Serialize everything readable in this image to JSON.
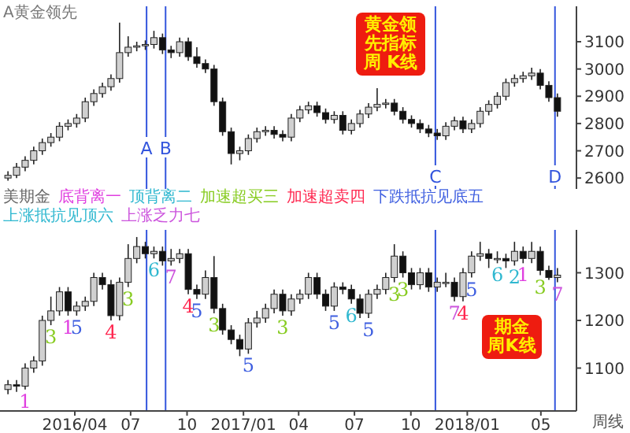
{
  "chart_data": [
    {
      "type": "candlestick",
      "title": "A黄金领先",
      "annotations": [
        "黄金领先指标周 K线"
      ],
      "x": [
        "2015-12-14",
        "2015-12-28",
        "2016-01-11",
        "2016-01-25",
        "2016-02-08",
        "2016-02-22",
        "2016-03-07",
        "2016-03-21",
        "2016-04-04",
        "2016-04-18",
        "2016-05-02",
        "2016-05-16",
        "2016-05-30",
        "2016-06-13",
        "2016-06-27",
        "2016-07-11",
        "2016-07-25",
        "2016-08-08",
        "2016-08-22",
        "2016-09-05",
        "2016-09-19",
        "2016-10-03",
        "2016-10-17",
        "2016-10-31",
        "2016-11-14",
        "2016-11-28",
        "2016-12-12",
        "2016-12-26",
        "2017-01-09",
        "2017-01-23",
        "2017-02-06",
        "2017-02-20",
        "2017-03-06",
        "2017-03-20",
        "2017-04-03",
        "2017-04-17",
        "2017-05-01",
        "2017-05-15",
        "2017-05-29",
        "2017-06-12",
        "2017-06-26",
        "2017-07-10",
        "2017-07-24",
        "2017-08-07",
        "2017-08-21",
        "2017-09-04",
        "2017-09-18",
        "2017-10-02",
        "2017-10-16",
        "2017-10-30",
        "2017-11-13",
        "2017-11-27",
        "2017-12-11",
        "2017-12-25",
        "2018-01-08",
        "2018-01-22",
        "2018-02-05",
        "2018-02-19",
        "2018-03-05",
        "2018-03-19",
        "2018-04-02",
        "2018-04-16",
        "2018-04-30",
        "2018-05-14",
        "2018-05-28"
      ],
      "ohlc": [
        [
          2600,
          2625,
          2590,
          2610
        ],
        [
          2610,
          2655,
          2600,
          2640
        ],
        [
          2640,
          2680,
          2625,
          2665
        ],
        [
          2665,
          2715,
          2650,
          2700
        ],
        [
          2700,
          2745,
          2685,
          2730
        ],
        [
          2730,
          2765,
          2715,
          2750
        ],
        [
          2750,
          2805,
          2735,
          2790
        ],
        [
          2790,
          2815,
          2775,
          2800
        ],
        [
          2800,
          2835,
          2785,
          2820
        ],
        [
          2820,
          2895,
          2805,
          2880
        ],
        [
          2880,
          2925,
          2865,
          2910
        ],
        [
          2910,
          2950,
          2895,
          2935
        ],
        [
          2935,
          2980,
          2920,
          2965
        ],
        [
          2965,
          3170,
          2950,
          3060
        ],
        [
          3060,
          3120,
          3045,
          3080
        ],
        [
          3080,
          3100,
          3065,
          3085
        ],
        [
          3085,
          3105,
          3070,
          3090
        ],
        [
          3090,
          3140,
          3075,
          3115
        ],
        [
          3115,
          3130,
          3055,
          3070
        ],
        [
          3070,
          3085,
          3040,
          3060
        ],
        [
          3060,
          3115,
          3045,
          3100
        ],
        [
          3100,
          3115,
          3030,
          3045
        ],
        [
          3045,
          3080,
          3005,
          3020
        ],
        [
          3020,
          3035,
          2985,
          3000
        ],
        [
          3000,
          3015,
          2865,
          2880
        ],
        [
          2880,
          2895,
          2755,
          2770
        ],
        [
          2770,
          2785,
          2650,
          2690
        ],
        [
          2690,
          2715,
          2665,
          2700
        ],
        [
          2700,
          2760,
          2685,
          2745
        ],
        [
          2745,
          2785,
          2730,
          2770
        ],
        [
          2770,
          2790,
          2755,
          2775
        ],
        [
          2775,
          2790,
          2745,
          2760
        ],
        [
          2760,
          2775,
          2735,
          2750
        ],
        [
          2750,
          2835,
          2735,
          2820
        ],
        [
          2820,
          2865,
          2805,
          2850
        ],
        [
          2850,
          2880,
          2835,
          2865
        ],
        [
          2865,
          2880,
          2825,
          2840
        ],
        [
          2840,
          2855,
          2800,
          2815
        ],
        [
          2815,
          2845,
          2800,
          2830
        ],
        [
          2830,
          2845,
          2760,
          2775
        ],
        [
          2775,
          2815,
          2760,
          2800
        ],
        [
          2800,
          2850,
          2785,
          2835
        ],
        [
          2835,
          2875,
          2820,
          2860
        ],
        [
          2860,
          2930,
          2845,
          2870
        ],
        [
          2870,
          2890,
          2855,
          2875
        ],
        [
          2875,
          2890,
          2830,
          2845
        ],
        [
          2845,
          2860,
          2800,
          2815
        ],
        [
          2815,
          2830,
          2785,
          2800
        ],
        [
          2800,
          2815,
          2765,
          2780
        ],
        [
          2780,
          2795,
          2750,
          2765
        ],
        [
          2765,
          2780,
          2740,
          2755
        ],
        [
          2755,
          2805,
          2740,
          2790
        ],
        [
          2790,
          2825,
          2775,
          2810
        ],
        [
          2810,
          2825,
          2765,
          2780
        ],
        [
          2780,
          2815,
          2765,
          2800
        ],
        [
          2800,
          2860,
          2785,
          2845
        ],
        [
          2845,
          2885,
          2830,
          2870
        ],
        [
          2870,
          2915,
          2855,
          2900
        ],
        [
          2900,
          2965,
          2885,
          2950
        ],
        [
          2950,
          2980,
          2935,
          2965
        ],
        [
          2965,
          2990,
          2950,
          2975
        ],
        [
          2975,
          3005,
          2960,
          2985
        ],
        [
          2985,
          3000,
          2925,
          2940
        ],
        [
          2940,
          2955,
          2880,
          2895
        ],
        [
          2895,
          2910,
          2825,
          2845
        ]
      ],
      "xlim": [
        "2015-12-01",
        "2018-06-28"
      ],
      "ylim": [
        2560,
        3230
      ],
      "yticks": [
        2600,
        2700,
        2800,
        2900,
        3000,
        3100
      ],
      "tick_labels": "y",
      "ref_lines": [
        {
          "axis": "x",
          "value": "2016-07-27",
          "label": "A",
          "color": "#3355dd"
        },
        {
          "axis": "x",
          "value": "2016-08-27",
          "label": "B",
          "color": "#3355dd"
        },
        {
          "axis": "x",
          "value": "2017-11-10",
          "label": "C",
          "color": "#3355dd"
        },
        {
          "axis": "x",
          "value": "2018-05-24",
          "label": "D",
          "color": "#3355dd"
        }
      ]
    },
    {
      "type": "candlestick",
      "title": "美期金",
      "annotations": [
        "底背离一",
        "顶背离二",
        "加速超买三",
        "加速超卖四",
        "下跌抵抗见底五",
        "上涨抵抗见顶六",
        "上涨乏力七",
        "期金周K线",
        "周线",
        {
          "text": "1",
          "x": "2016-01-11",
          "y": 1055
        },
        {
          "text": "3",
          "x": "2016-02-22",
          "y": 1190
        },
        {
          "text": "1",
          "x": "2016-03-21",
          "y": 1210
        },
        {
          "text": "5",
          "x": "2016-04-04",
          "y": 1210
        },
        {
          "text": "4",
          "x": "2016-05-30",
          "y": 1200
        },
        {
          "text": "3",
          "x": "2016-06-27",
          "y": 1270
        },
        {
          "text": "6",
          "x": "2016-08-08",
          "y": 1330
        },
        {
          "text": "7",
          "x": "2016-09-05",
          "y": 1315
        },
        {
          "text": "4",
          "x": "2016-10-03",
          "y": 1255
        },
        {
          "text": "5",
          "x": "2016-10-17",
          "y": 1245
        },
        {
          "text": "3",
          "x": "2016-11-14",
          "y": 1215
        },
        {
          "text": "5",
          "x": "2017-01-09",
          "y": 1130
        },
        {
          "text": "3",
          "x": "2017-03-06",
          "y": 1210
        },
        {
          "text": "5",
          "x": "2017-05-29",
          "y": 1220
        },
        {
          "text": "6",
          "x": "2017-06-26",
          "y": 1235
        },
        {
          "text": "5",
          "x": "2017-07-24",
          "y": 1205
        },
        {
          "text": "3",
          "x": "2017-09-04",
          "y": 1280
        },
        {
          "text": "3",
          "x": "2017-09-18",
          "y": 1290
        },
        {
          "text": "7",
          "x": "2017-12-11",
          "y": 1240
        },
        {
          "text": "4",
          "x": "2017-12-25",
          "y": 1240
        },
        {
          "text": "5",
          "x": "2018-01-08",
          "y": 1290
        },
        {
          "text": "6",
          "x": "2018-02-19",
          "y": 1320
        },
        {
          "text": "2",
          "x": "2018-03-19",
          "y": 1315
        },
        {
          "text": "1",
          "x": "2018-04-02",
          "y": 1320
        },
        {
          "text": "3",
          "x": "2018-04-30",
          "y": 1295
        },
        {
          "text": "7",
          "x": "2018-05-28",
          "y": 1280
        }
      ],
      "x": [
        "2015-12-14",
        "2015-12-28",
        "2016-01-11",
        "2016-01-25",
        "2016-02-08",
        "2016-02-22",
        "2016-03-07",
        "2016-03-21",
        "2016-04-04",
        "2016-04-18",
        "2016-05-02",
        "2016-05-16",
        "2016-05-30",
        "2016-06-13",
        "2016-06-27",
        "2016-07-11",
        "2016-07-25",
        "2016-08-08",
        "2016-08-22",
        "2016-09-05",
        "2016-09-19",
        "2016-10-03",
        "2016-10-17",
        "2016-10-31",
        "2016-11-14",
        "2016-11-28",
        "2016-12-12",
        "2016-12-26",
        "2017-01-09",
        "2017-01-23",
        "2017-02-06",
        "2017-02-20",
        "2017-03-06",
        "2017-03-20",
        "2017-04-03",
        "2017-04-17",
        "2017-05-01",
        "2017-05-15",
        "2017-05-29",
        "2017-06-12",
        "2017-06-26",
        "2017-07-10",
        "2017-07-24",
        "2017-08-07",
        "2017-08-21",
        "2017-09-04",
        "2017-09-18",
        "2017-10-02",
        "2017-10-16",
        "2017-10-30",
        "2017-11-13",
        "2017-11-27",
        "2017-12-11",
        "2017-12-25",
        "2018-01-08",
        "2018-01-22",
        "2018-02-05",
        "2018-02-19",
        "2018-03-05",
        "2018-03-19",
        "2018-04-02",
        "2018-04-16",
        "2018-04-30",
        "2018-05-14",
        "2018-05-28"
      ],
      "ohlc": [
        [
          1055,
          1075,
          1045,
          1065
        ],
        [
          1065,
          1075,
          1050,
          1062
        ],
        [
          1062,
          1110,
          1055,
          1100
        ],
        [
          1100,
          1125,
          1090,
          1115
        ],
        [
          1115,
          1210,
          1105,
          1200
        ],
        [
          1200,
          1250,
          1190,
          1220
        ],
        [
          1220,
          1270,
          1210,
          1260
        ],
        [
          1260,
          1270,
          1210,
          1220
        ],
        [
          1220,
          1240,
          1210,
          1230
        ],
        [
          1230,
          1250,
          1220,
          1240
        ],
        [
          1240,
          1300,
          1230,
          1290
        ],
        [
          1290,
          1300,
          1265,
          1275
        ],
        [
          1275,
          1285,
          1200,
          1210
        ],
        [
          1210,
          1290,
          1200,
          1280
        ],
        [
          1280,
          1360,
          1270,
          1330
        ],
        [
          1330,
          1375,
          1320,
          1355
        ],
        [
          1355,
          1365,
          1330,
          1340
        ],
        [
          1340,
          1355,
          1330,
          1345
        ],
        [
          1345,
          1355,
          1315,
          1325
        ],
        [
          1325,
          1350,
          1315,
          1330
        ],
        [
          1330,
          1350,
          1320,
          1340
        ],
        [
          1340,
          1350,
          1255,
          1265
        ],
        [
          1265,
          1275,
          1245,
          1255
        ],
        [
          1255,
          1305,
          1245,
          1290
        ],
        [
          1290,
          1335,
          1215,
          1225
        ],
        [
          1225,
          1235,
          1170,
          1180
        ],
        [
          1180,
          1190,
          1150,
          1160
        ],
        [
          1160,
          1170,
          1125,
          1140
        ],
        [
          1140,
          1205,
          1130,
          1195
        ],
        [
          1195,
          1220,
          1185,
          1205
        ],
        [
          1205,
          1235,
          1195,
          1225
        ],
        [
          1225,
          1265,
          1215,
          1255
        ],
        [
          1255,
          1265,
          1210,
          1220
        ],
        [
          1220,
          1255,
          1210,
          1245
        ],
        [
          1245,
          1265,
          1235,
          1255
        ],
        [
          1255,
          1300,
          1245,
          1290
        ],
        [
          1290,
          1300,
          1245,
          1255
        ],
        [
          1255,
          1265,
          1220,
          1230
        ],
        [
          1230,
          1280,
          1220,
          1270
        ],
        [
          1270,
          1280,
          1255,
          1265
        ],
        [
          1265,
          1275,
          1235,
          1245
        ],
        [
          1245,
          1255,
          1205,
          1215
        ],
        [
          1215,
          1265,
          1205,
          1255
        ],
        [
          1255,
          1275,
          1245,
          1265
        ],
        [
          1265,
          1300,
          1255,
          1290
        ],
        [
          1290,
          1360,
          1280,
          1335
        ],
        [
          1335,
          1345,
          1290,
          1300
        ],
        [
          1300,
          1310,
          1265,
          1275
        ],
        [
          1275,
          1310,
          1265,
          1300
        ],
        [
          1300,
          1310,
          1260,
          1270
        ],
        [
          1270,
          1290,
          1260,
          1280
        ],
        [
          1280,
          1300,
          1270,
          1280
        ],
        [
          1280,
          1290,
          1240,
          1250
        ],
        [
          1250,
          1310,
          1240,
          1300
        ],
        [
          1300,
          1345,
          1290,
          1335
        ],
        [
          1335,
          1365,
          1325,
          1340
        ],
        [
          1340,
          1350,
          1310,
          1330
        ],
        [
          1330,
          1345,
          1320,
          1330
        ],
        [
          1330,
          1340,
          1310,
          1325
        ],
        [
          1325,
          1365,
          1315,
          1345
        ],
        [
          1345,
          1355,
          1320,
          1330
        ],
        [
          1330,
          1365,
          1320,
          1345
        ],
        [
          1345,
          1355,
          1295,
          1305
        ],
        [
          1305,
          1315,
          1285,
          1290
        ],
        [
          1290,
          1310,
          1280,
          1295
        ]
      ],
      "xlim": [
        "2015-12-01",
        "2018-06-28"
      ],
      "xticks": [
        {
          "value": "2016-04-01",
          "label": "2016/04"
        },
        {
          "value": "2016-07-01",
          "label": "07"
        },
        {
          "value": "2016-10-01",
          "label": "10"
        },
        {
          "value": "2017-01-01",
          "label": "2017/01"
        },
        {
          "value": "2017-04-01",
          "label": "04"
        },
        {
          "value": "2017-07-01",
          "label": "07"
        },
        {
          "value": "2017-10-01",
          "label": "10"
        },
        {
          "value": "2018-01-01",
          "label": "2018/01"
        },
        {
          "value": "2018-05-01",
          "label": "05"
        }
      ],
      "ylim": [
        1010,
        1390
      ],
      "yticks": [
        1100,
        1200,
        1300
      ],
      "ref_lines": [
        {
          "axis": "x",
          "value": "2016-07-27",
          "color": "#3355dd"
        },
        {
          "axis": "x",
          "value": "2016-08-27",
          "color": "#3355dd"
        },
        {
          "axis": "x",
          "value": "2017-11-10",
          "color": "#3355dd"
        },
        {
          "axis": "x",
          "value": "2018-05-24",
          "color": "#3355dd"
        }
      ]
    }
  ]
}
